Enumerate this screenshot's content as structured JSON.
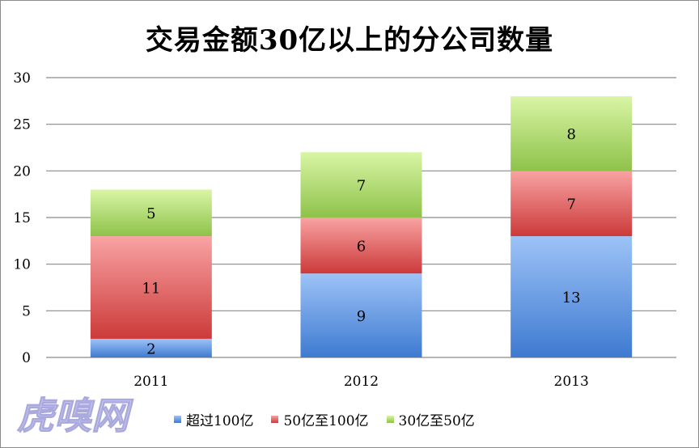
{
  "chart_data": {
    "type": "bar",
    "stacked": true,
    "title": "交易金额30亿以上的分公司数量",
    "categories": [
      "2011",
      "2012",
      "2013"
    ],
    "series": [
      {
        "name": "超过100亿",
        "values": [
          2,
          9,
          13
        ],
        "color_top": "#9dc3f7",
        "color_bottom": "#3e7ad0"
      },
      {
        "name": "50亿至100亿",
        "values": [
          11,
          6,
          7
        ],
        "color_top": "#f9a3a3",
        "color_bottom": "#cc3a3a"
      },
      {
        "name": "30亿至50亿",
        "values": [
          5,
          7,
          8
        ],
        "color_top": "#d9f5a5",
        "color_bottom": "#8ec24a"
      }
    ],
    "ylim": [
      0,
      30
    ],
    "yticks": [
      "0",
      "5",
      "10",
      "15",
      "20",
      "25",
      "30"
    ],
    "grid": true,
    "legend_position": "bottom",
    "data_labels": true
  },
  "watermark": {
    "text": "虎嗅网",
    "color": "#c9c9ef"
  }
}
